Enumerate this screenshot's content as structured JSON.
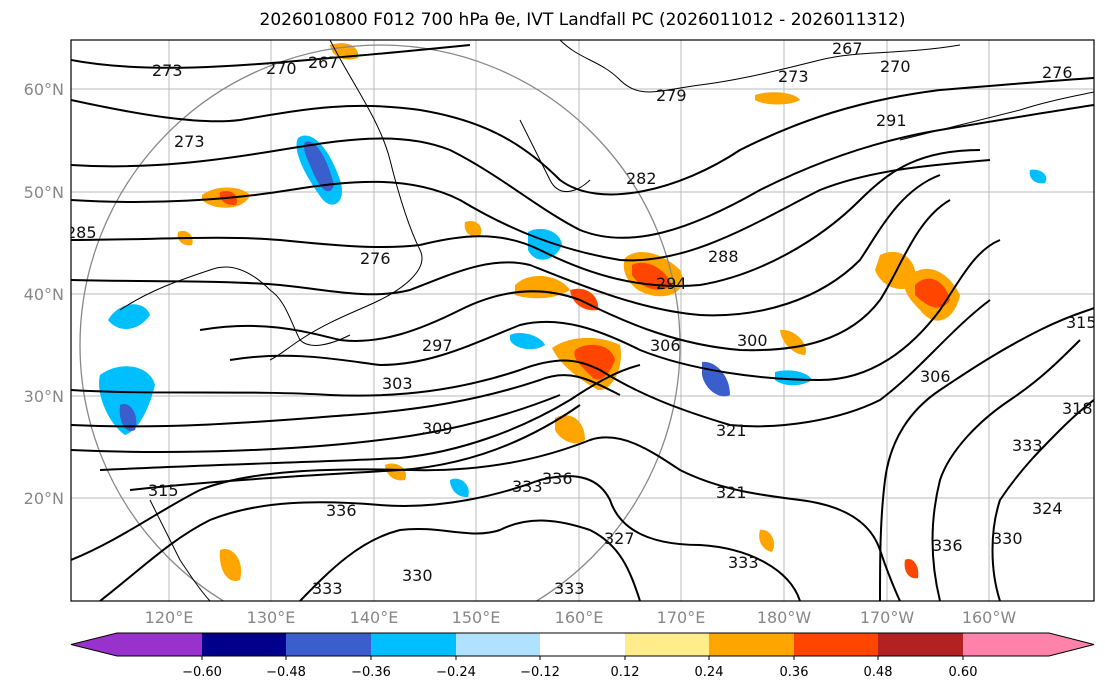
{
  "title": "2026010800 F012 700 hPa θe, IVT Landfall PC (2026011012 - 2026011312)",
  "lon_ticks": [
    "120°E",
    "130°E",
    "140°E",
    "150°E",
    "160°E",
    "170°E",
    "180°W",
    "170°W",
    "160°W"
  ],
  "lat_ticks": [
    "60°N",
    "50°N",
    "40°N",
    "30°N",
    "20°N"
  ],
  "colorbar": {
    "levels": [
      "−0.60",
      "−0.48",
      "−0.36",
      "−0.24",
      "−0.12",
      "0.12",
      "0.24",
      "0.36",
      "0.48",
      "0.60"
    ],
    "colors": [
      "#9932cc",
      "#00008b",
      "#3a5fcd",
      "#00bfff",
      "#b0e2ff",
      "#ffffff",
      "#ffec8b",
      "#ffa500",
      "#ff4500",
      "#b22222",
      "#ff82ab"
    ]
  },
  "contour_labels": [
    "273",
    "270",
    "267",
    "273",
    "285",
    "276",
    "282",
    "279",
    "267",
    "270",
    "273",
    "276",
    "291",
    "288",
    "294",
    "300",
    "306",
    "297",
    "303",
    "309",
    "321",
    "315",
    "336",
    "336",
    "333",
    "321",
    "333",
    "330",
    "333",
    "333",
    "336",
    "330",
    "324",
    "318",
    "315",
    "333",
    "327",
    "306"
  ]
}
